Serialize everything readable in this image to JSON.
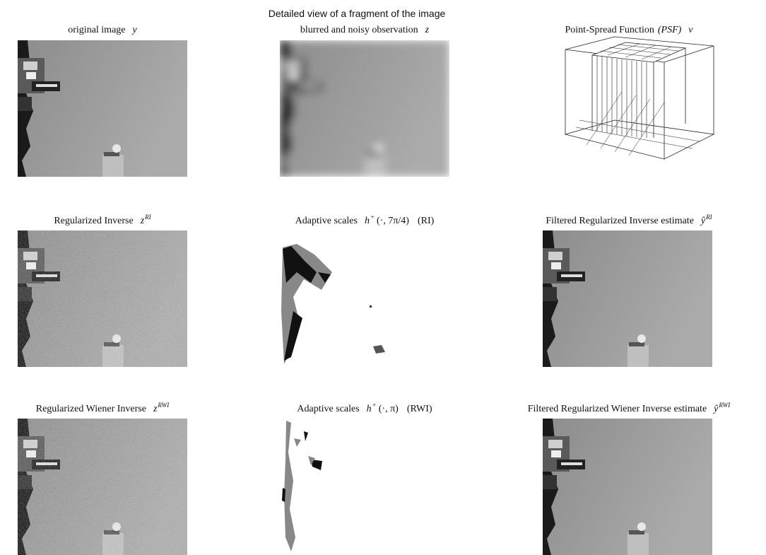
{
  "figure": {
    "title": "Detailed view of a fragment of the image",
    "panels": [
      {
        "label": "original image",
        "symbol": "y"
      },
      {
        "label": "blurred and noisy observation",
        "symbol": "z"
      },
      {
        "label": "Point-Spread Function",
        "abbr": "(PSF)",
        "symbol": "v"
      },
      {
        "label": "Regularized Inverse",
        "symbol": "z",
        "sup": "RI"
      },
      {
        "label": "Adaptive scales",
        "symbol": "h",
        "sup": "+",
        "args": "(·, 7π/4)",
        "note": "(RI)"
      },
      {
        "label": "Filtered Regularized Inverse estimate",
        "symbol": "ŷ",
        "sup": "RI"
      },
      {
        "label": "Regularized Wiener Inverse",
        "symbol": "z",
        "sup": "RWI"
      },
      {
        "label": "Adaptive scales",
        "symbol": "h",
        "sup": "+",
        "args": "(·, π)",
        "note": "(RWI)"
      },
      {
        "label": "Filtered Regularized Wiener Inverse estimate",
        "symbol": "ŷ",
        "sup": "RWI"
      }
    ]
  }
}
